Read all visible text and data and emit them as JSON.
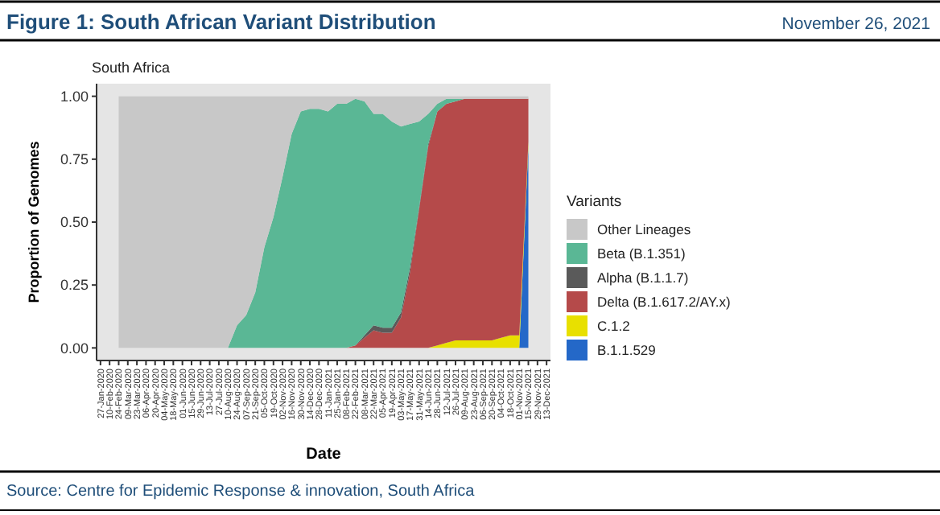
{
  "chart_data": {
    "type": "area",
    "stacked": true,
    "title": "Figure 1: South African Variant Distribution",
    "subtitle": "South Africa",
    "xlabel": "Date",
    "ylabel": "Proportion of Genomes",
    "legend_title": "Variants",
    "legend": "right",
    "annotations": [
      "November 26, 2021",
      "Source: Centre for Epidemic Response & innovation, South Africa"
    ],
    "x": [
      "2020-02-24",
      "2020-03-09",
      "2020-03-23",
      "2020-04-06",
      "2020-04-20",
      "2020-05-04",
      "2020-05-18",
      "2020-06-01",
      "2020-06-15",
      "2020-06-29",
      "2020-07-13",
      "2020-07-27",
      "2020-08-10",
      "2020-08-24",
      "2020-09-07",
      "2020-09-21",
      "2020-10-05",
      "2020-10-19",
      "2020-11-02",
      "2020-11-16",
      "2020-11-30",
      "2020-12-14",
      "2020-12-28",
      "2021-01-11",
      "2021-01-25",
      "2021-02-08",
      "2021-02-22",
      "2021-03-08",
      "2021-03-22",
      "2021-04-05",
      "2021-04-19",
      "2021-05-03",
      "2021-05-17",
      "2021-05-31",
      "2021-06-14",
      "2021-06-28",
      "2021-07-12",
      "2021-07-26",
      "2021-08-09",
      "2021-08-23",
      "2021-09-06",
      "2021-09-20",
      "2021-10-04",
      "2021-10-18",
      "2021-11-01",
      "2021-11-15"
    ],
    "xlim": [
      "2020-01-21",
      "2021-12-19"
    ],
    "ylim": [
      -0.05,
      1.05
    ],
    "xticks": [
      {
        "value": "2020-01-27",
        "label": "27-Jan-2020"
      },
      {
        "value": "2020-02-10",
        "label": "10-Feb-2020"
      },
      {
        "value": "2020-02-24",
        "label": "24-Feb-2020"
      },
      {
        "value": "2020-03-09",
        "label": "09-Mar-2020"
      },
      {
        "value": "2020-03-23",
        "label": "23-Mar-2020"
      },
      {
        "value": "2020-04-06",
        "label": "06-Apr-2020"
      },
      {
        "value": "2020-04-20",
        "label": "20-Apr-2020"
      },
      {
        "value": "2020-05-04",
        "label": "04-May-2020"
      },
      {
        "value": "2020-05-18",
        "label": "18-May-2020"
      },
      {
        "value": "2020-06-01",
        "label": "01-Jun-2020"
      },
      {
        "value": "2020-06-15",
        "label": "15-Jun-2020"
      },
      {
        "value": "2020-06-29",
        "label": "29-Jun-2020"
      },
      {
        "value": "2020-07-13",
        "label": "13-Jul-2020"
      },
      {
        "value": "2020-07-27",
        "label": "27-Jul-2020"
      },
      {
        "value": "2020-08-10",
        "label": "10-Aug-2020"
      },
      {
        "value": "2020-08-24",
        "label": "24-Aug-2020"
      },
      {
        "value": "2020-09-07",
        "label": "07-Sep-2020"
      },
      {
        "value": "2020-09-21",
        "label": "21-Sep-2020"
      },
      {
        "value": "2020-10-05",
        "label": "05-Oct-2020"
      },
      {
        "value": "2020-10-19",
        "label": "19-Oct-2020"
      },
      {
        "value": "2020-11-02",
        "label": "02-Nov-2020"
      },
      {
        "value": "2020-11-16",
        "label": "16-Nov-2020"
      },
      {
        "value": "2020-11-30",
        "label": "30-Nov-2020"
      },
      {
        "value": "2020-12-14",
        "label": "14-Dec-2020"
      },
      {
        "value": "2020-12-28",
        "label": "28-Dec-2020"
      },
      {
        "value": "2021-01-11",
        "label": "11-Jan-2021"
      },
      {
        "value": "2021-01-25",
        "label": "25-Jan-2021"
      },
      {
        "value": "2021-02-08",
        "label": "08-Feb-2021"
      },
      {
        "value": "2021-02-22",
        "label": "22-Feb-2021"
      },
      {
        "value": "2021-03-08",
        "label": "08-Mar-2021"
      },
      {
        "value": "2021-03-22",
        "label": "22-Mar-2021"
      },
      {
        "value": "2021-04-05",
        "label": "05-Apr-2021"
      },
      {
        "value": "2021-04-19",
        "label": "19-Apr-2021"
      },
      {
        "value": "2021-05-03",
        "label": "03-May-2021"
      },
      {
        "value": "2021-05-17",
        "label": "17-May-2021"
      },
      {
        "value": "2021-05-31",
        "label": "31-May-2021"
      },
      {
        "value": "2021-06-14",
        "label": "14-Jun-2021"
      },
      {
        "value": "2021-06-28",
        "label": "28-Jun-2021"
      },
      {
        "value": "2021-07-12",
        "label": "12-Jul-2021"
      },
      {
        "value": "2021-07-26",
        "label": "26-Jul-2021"
      },
      {
        "value": "2021-08-09",
        "label": "09-Aug-2021"
      },
      {
        "value": "2021-08-23",
        "label": "23-Aug-2021"
      },
      {
        "value": "2021-09-06",
        "label": "06-Sep-2021"
      },
      {
        "value": "2021-09-20",
        "label": "20-Sep-2021"
      },
      {
        "value": "2021-10-04",
        "label": "04-Oct-2021"
      },
      {
        "value": "2021-10-18",
        "label": "18-Oct-2021"
      },
      {
        "value": "2021-11-01",
        "label": "01-Nov-2021"
      },
      {
        "value": "2021-11-15",
        "label": "15-Nov-2021"
      },
      {
        "value": "2021-11-29",
        "label": "29-Nov-2021"
      },
      {
        "value": "2021-12-13",
        "label": "13-Dec-2021"
      }
    ],
    "yticks": [
      {
        "value": 0,
        "label": "0.00"
      },
      {
        "value": 0.25,
        "label": "0.25"
      },
      {
        "value": 0.5,
        "label": "0.50"
      },
      {
        "value": 0.75,
        "label": "0.75"
      },
      {
        "value": 1,
        "label": "1.00"
      }
    ],
    "series": [
      {
        "name": "B.1.1.529",
        "color": "#2468c8",
        "values": [
          null,
          null,
          null,
          null,
          null,
          null,
          null,
          null,
          null,
          null,
          null,
          null,
          null,
          null,
          null,
          null,
          null,
          null,
          null,
          null,
          null,
          null,
          null,
          null,
          null,
          null,
          null,
          null,
          null,
          null,
          null,
          null,
          null,
          null,
          null,
          null,
          null,
          null,
          null,
          null,
          null,
          null,
          null,
          null,
          0,
          0.8
        ]
      },
      {
        "name": "C.1.2",
        "color": "#e8e000",
        "values": [
          null,
          null,
          null,
          null,
          null,
          null,
          null,
          null,
          null,
          null,
          null,
          null,
          null,
          null,
          null,
          null,
          null,
          null,
          null,
          null,
          null,
          null,
          null,
          null,
          null,
          null,
          null,
          null,
          null,
          null,
          null,
          null,
          null,
          null,
          0,
          0.01,
          0.02,
          0.03,
          0.03,
          0.03,
          0.03,
          0.03,
          0.04,
          0.05,
          0.05,
          0.02
        ]
      },
      {
        "name": "Delta (B.1.617.2/AY.x)",
        "color": "#b54a4a",
        "values": [
          null,
          null,
          null,
          null,
          null,
          null,
          null,
          null,
          null,
          null,
          null,
          null,
          null,
          null,
          null,
          null,
          null,
          null,
          null,
          null,
          null,
          null,
          null,
          null,
          null,
          0,
          0.01,
          0.04,
          0.07,
          0.06,
          0.06,
          0.12,
          0.3,
          0.55,
          0.8,
          0.93,
          0.95,
          0.95,
          0.96,
          0.96,
          0.96,
          0.96,
          0.95,
          0.94,
          0.94,
          0.17
        ]
      },
      {
        "name": "Alpha (B.1.1.7)",
        "color": "#5a5a5a",
        "values": [
          null,
          null,
          null,
          null,
          null,
          null,
          null,
          null,
          null,
          null,
          null,
          null,
          null,
          null,
          null,
          null,
          null,
          null,
          null,
          null,
          null,
          null,
          null,
          null,
          null,
          null,
          0,
          0.01,
          0.02,
          0.02,
          0.02,
          0.02,
          0.02,
          0.01,
          0.01,
          0,
          null,
          null,
          null,
          null,
          null,
          null,
          null,
          null,
          null,
          null
        ]
      },
      {
        "name": "Beta (B.1.351)",
        "color": "#5ab795",
        "values": [
          null,
          null,
          null,
          null,
          null,
          null,
          null,
          null,
          null,
          null,
          null,
          null,
          0,
          0.09,
          0.13,
          0.22,
          0.4,
          0.52,
          0.68,
          0.85,
          0.94,
          0.95,
          0.95,
          0.94,
          0.97,
          0.97,
          0.98,
          0.93,
          0.84,
          0.85,
          0.82,
          0.74,
          0.57,
          0.34,
          0.12,
          0.03,
          0.02,
          0.01,
          0,
          null,
          null,
          null,
          null,
          null,
          null,
          null
        ]
      },
      {
        "name": "Other Lineages",
        "color": "#c8c8c8",
        "values": [
          1,
          1,
          1,
          1,
          1,
          1,
          1,
          1,
          1,
          1,
          1,
          1,
          1,
          0.91,
          0.87,
          0.78,
          0.6,
          0.48,
          0.32,
          0.15,
          0.06,
          0.05,
          0.05,
          0.06,
          0.03,
          0.03,
          0.01,
          0.02,
          0.07,
          0.07,
          0.1,
          0.12,
          0.11,
          0.1,
          0.07,
          0.03,
          0.01,
          0.01,
          0.01,
          0.01,
          0.01,
          0.01,
          0.01,
          0.01,
          0.01,
          0.01
        ]
      }
    ]
  }
}
